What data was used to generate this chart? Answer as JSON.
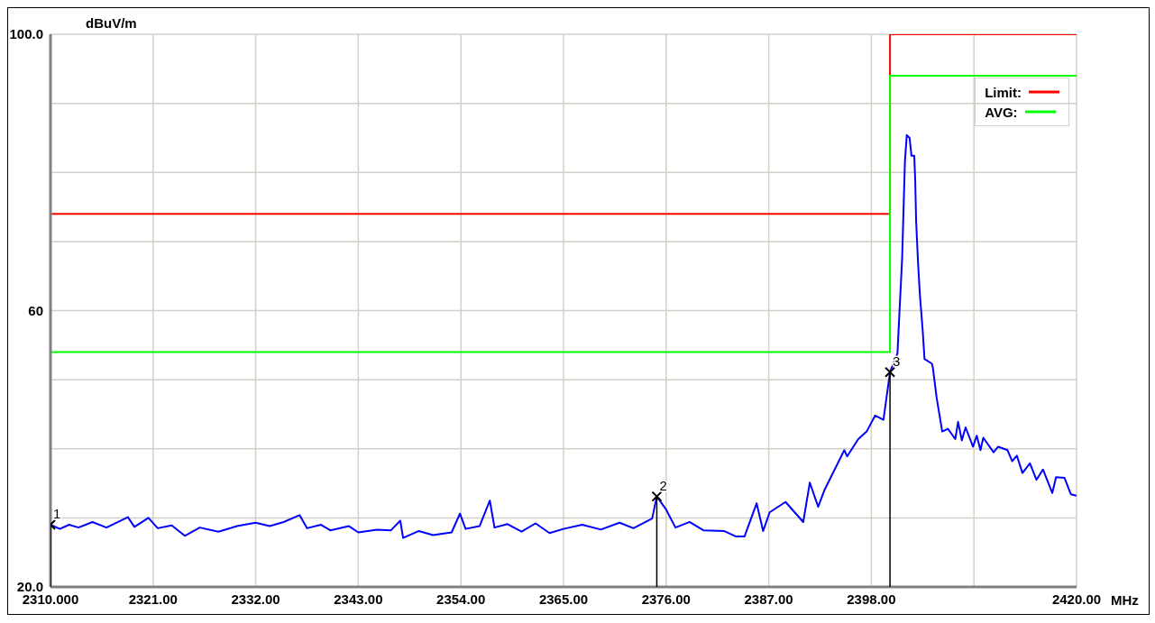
{
  "chart_data": {
    "type": "line",
    "ylabel": "dBuV/m",
    "xlabel": "MHz",
    "xlim": [
      2310,
      2420
    ],
    "ylim": [
      20,
      100
    ],
    "xticks": [
      {
        "value": 2310,
        "label": "2310.000"
      },
      {
        "value": 2321,
        "label": "2321.00"
      },
      {
        "value": 2332,
        "label": "2332.00"
      },
      {
        "value": 2343,
        "label": "2343.00"
      },
      {
        "value": 2354,
        "label": "2354.00"
      },
      {
        "value": 2365,
        "label": "2365.00"
      },
      {
        "value": 2376,
        "label": "2376.00"
      },
      {
        "value": 2387,
        "label": "2387.00"
      },
      {
        "value": 2398,
        "label": "2398.00"
      },
      {
        "value": 2409,
        "label": null
      },
      {
        "value": 2420,
        "label": "2420.00"
      }
    ],
    "yticks": [
      {
        "value": 20,
        "label": "20.0"
      },
      {
        "value": 30,
        "label": null
      },
      {
        "value": 40,
        "label": null
      },
      {
        "value": 50,
        "label": null
      },
      60,
      {
        "value": 70,
        "label": null
      },
      {
        "value": 80,
        "label": null
      },
      {
        "value": 90,
        "label": null
      },
      {
        "value": 100,
        "label": "100.0"
      }
    ],
    "grid": true,
    "legend": "top right",
    "annotations": [
      {
        "text": "1",
        "x": 2310,
        "y": 29.0
      },
      {
        "text": "2",
        "x": 2375,
        "y": 33.1
      },
      {
        "text": "3",
        "x": 2400,
        "y": 51.1
      }
    ],
    "series": [
      {
        "name": "Limit:",
        "color": "#ff0000",
        "x": [
          2310,
          2400,
          2400,
          2420
        ],
        "values": [
          74,
          74,
          100,
          100
        ]
      },
      {
        "name": "AVG:",
        "color": "#00ff00",
        "x": [
          2310,
          2400,
          2400,
          2420
        ],
        "values": [
          54,
          54,
          94,
          94
        ]
      },
      {
        "color": "#0000ff",
        "x": [
          2310,
          2311,
          2312,
          2313,
          2314.5,
          2316,
          2318.3,
          2319,
          2320.5,
          2321.5,
          2323,
          2324.4,
          2326,
          2328,
          2330,
          2332,
          2333.5,
          2335,
          2336.7,
          2337.5,
          2339,
          2340,
          2342,
          2343,
          2345,
          2346.5,
          2347.5,
          2347.8,
          2349.5,
          2351,
          2353,
          2353.9,
          2354.5,
          2356,
          2357.1,
          2357.6,
          2359,
          2360.5,
          2362,
          2363.5,
          2365,
          2367,
          2369,
          2371,
          2372.5,
          2374.5,
          2375,
          2376,
          2377,
          2378.5,
          2380,
          2382.2,
          2383.5,
          2384.4,
          2385.7,
          2386.4,
          2387.1,
          2388.8,
          2390.7,
          2391.4,
          2392.3,
          2393,
          2395.1,
          2395.4,
          2396.6,
          2397.5,
          2398.4,
          2399.3,
          2400,
          2400.8,
          2401,
          2401.3,
          2401.6,
          2401.8,
          2402.1,
          2402.3,
          2402.6,
          2402.7,
          2402.8,
          2403,
          2403.2,
          2403.5,
          2403.7,
          2404.5,
          2404.6,
          2405,
          2405.6,
          2406.2,
          2407,
          2407.3,
          2407.7,
          2408.1,
          2408.9,
          2409.3,
          2409.7,
          2410,
          2411.1,
          2411.6,
          2412.6,
          2413.1,
          2413.6,
          2414.2,
          2415,
          2415.7,
          2416.4,
          2417.4,
          2417.8,
          2418.7,
          2419.4,
          2420
        ],
        "values": [
          29.0,
          28.4,
          29.0,
          28.6,
          29.4,
          28.6,
          30.1,
          28.7,
          30.0,
          28.5,
          28.9,
          27.4,
          28.6,
          28.0,
          28.8,
          29.3,
          28.8,
          29.4,
          30.4,
          28.5,
          29.0,
          28.2,
          28.8,
          27.9,
          28.3,
          28.2,
          29.6,
          27.1,
          28.1,
          27.5,
          27.9,
          30.6,
          28.4,
          28.8,
          32.5,
          28.6,
          29.1,
          28.0,
          29.2,
          27.8,
          28.4,
          29.0,
          28.3,
          29.3,
          28.5,
          29.9,
          33.1,
          31.2,
          28.6,
          29.4,
          28.2,
          28.1,
          27.3,
          27.3,
          32.1,
          28.1,
          30.8,
          32.3,
          29.4,
          35.1,
          31.6,
          34.1,
          39.8,
          38.9,
          41.4,
          42.5,
          44.8,
          44.2,
          51.1,
          53.8,
          59.4,
          67.5,
          81.6,
          85.4,
          85.0,
          82.4,
          82.4,
          79.0,
          73.0,
          67.1,
          62.4,
          57.2,
          53.0,
          52.3,
          51.7,
          47.4,
          42.5,
          42.9,
          41.4,
          43.9,
          41.2,
          43.1,
          40.3,
          41.9,
          39.8,
          41.6,
          39.5,
          40.3,
          39.8,
          38.2,
          39.0,
          36.5,
          37.9,
          35.5,
          37.0,
          33.6,
          35.9,
          35.8,
          33.4,
          33.2
        ]
      },
      {
        "type": "lollipop",
        "color": "#000000",
        "marker": "cross",
        "x": [
          2310,
          2375,
          2400
        ],
        "values": [
          29.0,
          33.1,
          51.1
        ]
      }
    ]
  }
}
